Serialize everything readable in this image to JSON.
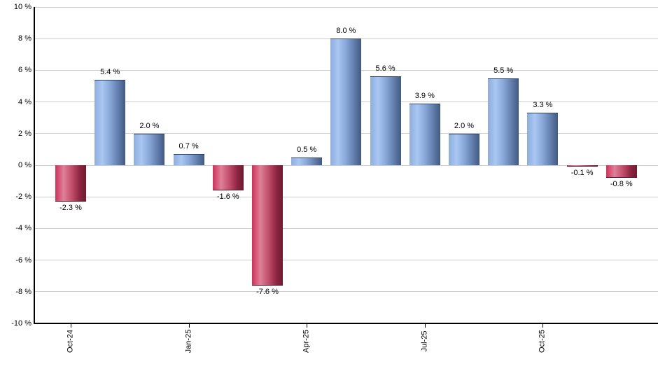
{
  "chart_data": {
    "type": "bar",
    "title": "",
    "xlabel": "",
    "ylabel": "",
    "ylim": [
      -10,
      10
    ],
    "grid": true,
    "legend_position": "none",
    "values": [
      -2.3,
      5.4,
      2.0,
      0.7,
      -1.6,
      -7.6,
      0.5,
      8.0,
      5.6,
      3.9,
      2.0,
      5.5,
      3.3,
      -0.1,
      -0.8
    ],
    "bar_value_labels": [
      "-2.3 %",
      "5.4 %",
      "2.0 %",
      "0.7 %",
      "-1.6 %",
      "-7.6 %",
      "0.5 %",
      "8.0 %",
      "5.6 %",
      "3.9 %",
      "2.0 %",
      "5.5 %",
      "3.3 %",
      "-0.1 %",
      "-0.8 %"
    ],
    "x_ticks": [
      {
        "bar_index": 0,
        "label": "Oct-24"
      },
      {
        "bar_index": 3,
        "label": "Jan-25"
      },
      {
        "bar_index": 6,
        "label": "Apr-25"
      },
      {
        "bar_index": 9,
        "label": "Jul-25"
      },
      {
        "bar_index": 12,
        "label": "Oct-25"
      }
    ],
    "y_ticks": [
      {
        "value": 10,
        "label": "10 %"
      },
      {
        "value": 8,
        "label": "8 %"
      },
      {
        "value": 6,
        "label": "6 %"
      },
      {
        "value": 4,
        "label": "4 %"
      },
      {
        "value": 2,
        "label": "2 %"
      },
      {
        "value": 0,
        "label": "0 %"
      },
      {
        "value": -2,
        "label": "-2 %"
      },
      {
        "value": -4,
        "label": "-4 %"
      },
      {
        "value": -6,
        "label": "-6 %"
      },
      {
        "value": -8,
        "label": "-8 %"
      },
      {
        "value": -10,
        "label": "-10 %"
      }
    ],
    "colors": {
      "background": "#ffffff",
      "gridline": "#cccccc",
      "axis": "#000000",
      "text": "#000000",
      "positive_bar_gradient": [
        "#8fadde",
        "#a9c7f1",
        "#89a7d8",
        "#5f7cab",
        "#43597f"
      ],
      "negative_bar_gradient": [
        "#cf3159",
        "#de8099",
        "#bf4c68",
        "#8c2441",
        "#6d1b30"
      ],
      "positive_bar_cap": "#2f4368",
      "negative_bar_cap": "#551426"
    }
  }
}
